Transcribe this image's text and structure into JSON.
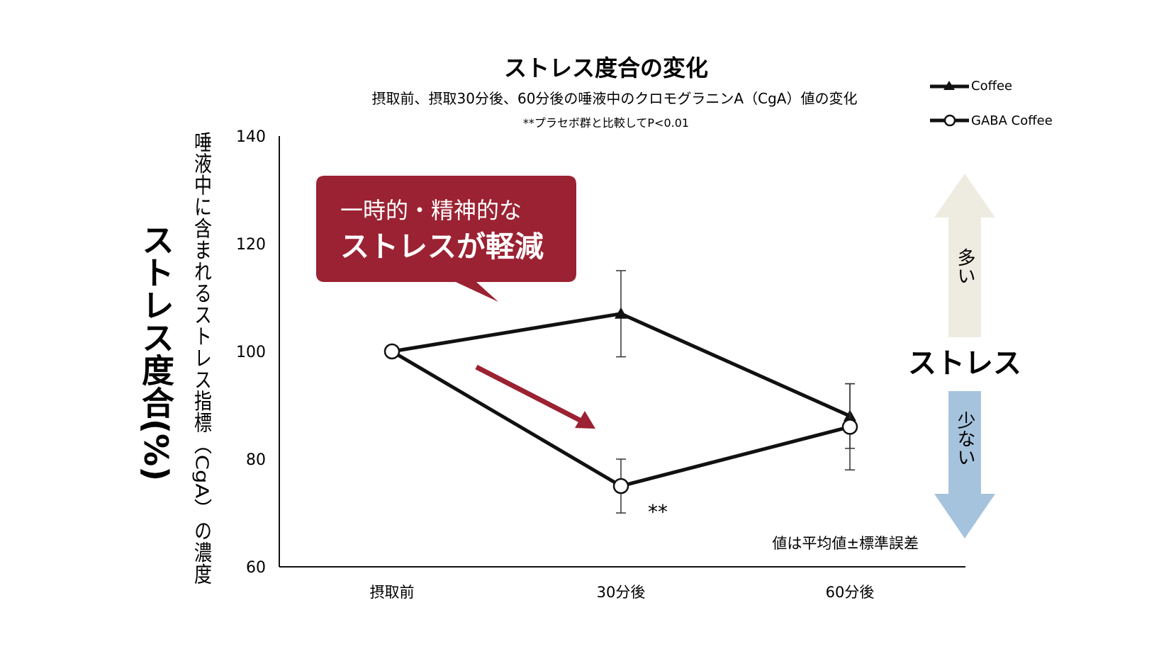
{
  "chart_data": {
    "type": "line",
    "title": "ストレス度合の変化",
    "subtitle": "摂取前、摂取30分後、60分後の唾液中のクロモグラニンA（CgA）値の変化",
    "note": "**プラセボ群と比較してP<0.01",
    "ylabel_main": "ストレス度合(%)",
    "ylabel_sub": "唾液中に含まれるストレス指標（CgA）の濃度",
    "categories": [
      "摂取前",
      "30分後",
      "60分後"
    ],
    "ylim": [
      60,
      140
    ],
    "yticks": [
      "140",
      "120",
      "100",
      "80",
      "60"
    ],
    "series": [
      {
        "name": "Coffee",
        "marker": "triangle",
        "values": [
          100,
          107,
          88
        ],
        "error": [
          0,
          8,
          6
        ]
      },
      {
        "name": "GABA Coffee",
        "marker": "circle",
        "values": [
          100,
          75,
          86
        ],
        "error": [
          0,
          5,
          8
        ]
      }
    ],
    "significance": "**",
    "error_note": "値は平均値±標準誤差",
    "callout": {
      "line1": "一時的・精神的な",
      "line2": "ストレスが軽減",
      "color": "#9b2232"
    },
    "stress_scale": {
      "label": "ストレス",
      "more": "多い",
      "less": "少ない",
      "more_color": "#eeebe0",
      "less_color": "#a6c3dd"
    },
    "trend_arrow_color": "#9b2232"
  }
}
